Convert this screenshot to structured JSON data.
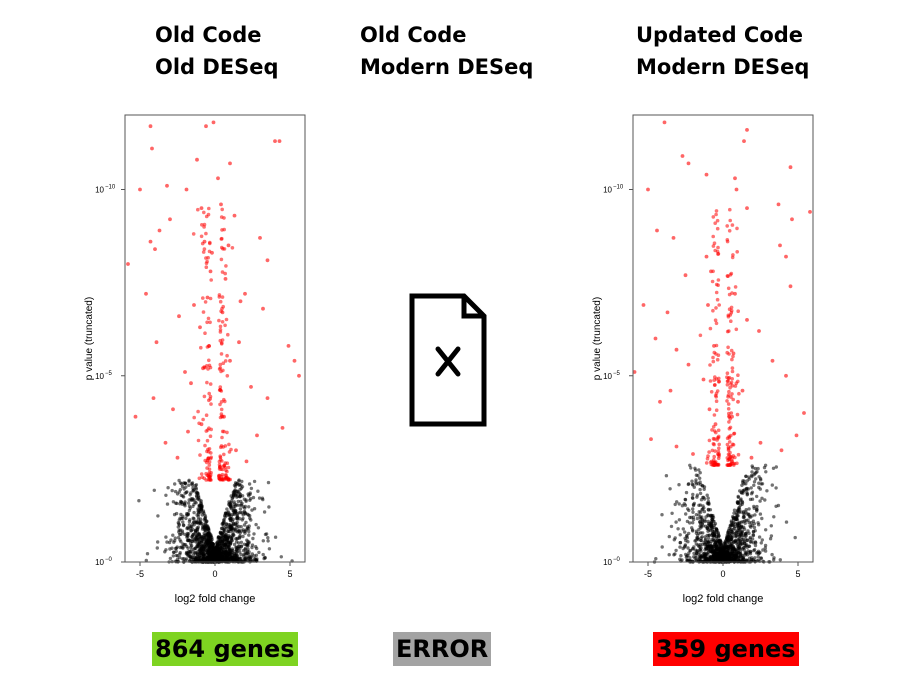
{
  "columns": [
    {
      "title_line1": "Old Code",
      "title_line2": "Old DESeq",
      "result_label": "864 genes",
      "result_color": "#7ed321"
    },
    {
      "title_line1": "Old Code",
      "title_line2": "Modern DESeq",
      "result_label": "ERROR",
      "result_color": "#a3a3a3"
    },
    {
      "title_line1": "Updated Code",
      "title_line2": "Modern DESeq",
      "result_label": "359 genes",
      "result_color": "#ff0000"
    }
  ],
  "error_icon": "file-error-icon",
  "colors": {
    "significant": "#ff0000",
    "not_significant": "#000000",
    "frame": "#555555"
  },
  "chart_data": [
    {
      "type": "scatter",
      "panel": "left",
      "xlabel": "log2 fold change",
      "ylabel": "p value (truncated)",
      "x_ticks": [
        -5,
        0,
        5
      ],
      "y_ticks": [
        {
          "exp": 0,
          "label": "10"
        },
        {
          "exp": -5,
          "label": "10"
        },
        {
          "exp": -10,
          "label": "10"
        }
      ],
      "y_tick_exponents": [
        "−0",
        "−5",
        "−10"
      ],
      "xlim": [
        -6,
        6
      ],
      "ylim_neg_log10": [
        0,
        12
      ],
      "significance_threshold_neg_log10": 2.2,
      "significant_genes": 864,
      "highlight_points": [
        [
          -4.3,
          11.7
        ],
        [
          -0.6,
          11.7
        ],
        [
          -0.1,
          11.8
        ],
        [
          4.0,
          11.3
        ],
        [
          4.3,
          11.3
        ],
        [
          -4.2,
          11.1
        ],
        [
          -1.2,
          10.8
        ],
        [
          1.0,
          10.7
        ],
        [
          -5.0,
          10.0
        ],
        [
          -3.2,
          10.1
        ],
        [
          -1.9,
          10.0
        ],
        [
          -0.9,
          9.5
        ],
        [
          -3.0,
          9.2
        ],
        [
          1.3,
          9.3
        ],
        [
          -3.7,
          8.9
        ],
        [
          -4.3,
          8.6
        ],
        [
          -4.0,
          8.4
        ],
        [
          -0.2,
          8.3
        ],
        [
          -0.7,
          8.6
        ],
        [
          0.9,
          8.5
        ],
        [
          0.4,
          9.6
        ],
        [
          3.0,
          8.7
        ],
        [
          -0.3,
          7.8
        ],
        [
          0.7,
          7.6
        ],
        [
          3.5,
          8.1
        ],
        [
          -5.8,
          8.0
        ],
        [
          2.0,
          7.2
        ],
        [
          -4.6,
          7.2
        ],
        [
          3.2,
          6.8
        ],
        [
          -2.4,
          6.6
        ],
        [
          -1.0,
          6.3
        ],
        [
          0.5,
          6.7
        ],
        [
          -3.9,
          5.9
        ],
        [
          1.6,
          5.9
        ],
        [
          4.9,
          5.8
        ],
        [
          5.3,
          5.4
        ],
        [
          -2.0,
          5.1
        ],
        [
          1.0,
          5.4
        ],
        [
          -0.4,
          5.8
        ],
        [
          -1.6,
          4.8
        ],
        [
          2.4,
          4.7
        ],
        [
          -4.1,
          4.4
        ],
        [
          3.5,
          4.4
        ],
        [
          -5.3,
          3.9
        ],
        [
          4.5,
          3.6
        ],
        [
          -1.8,
          3.5
        ],
        [
          2.8,
          3.4
        ],
        [
          -3.3,
          3.2
        ],
        [
          1.4,
          3.0
        ],
        [
          -0.9,
          3.7
        ],
        [
          0.6,
          3.9
        ],
        [
          -2.5,
          2.8
        ],
        [
          2.1,
          2.7
        ],
        [
          5.6,
          5.0
        ],
        [
          -2.8,
          4.1
        ],
        [
          -1.4,
          6.9
        ],
        [
          0.2,
          10.3
        ],
        [
          -0.5,
          7.1
        ],
        [
          1.7,
          7.0
        ],
        [
          -0.8,
          5.2
        ]
      ]
    },
    {
      "type": "scatter",
      "panel": "right",
      "xlabel": "log2 fold change",
      "ylabel": "p value (truncated)",
      "x_ticks": [
        -5,
        0,
        5
      ],
      "y_ticks": [
        {
          "exp": 0,
          "label": "10"
        },
        {
          "exp": -5,
          "label": "10"
        },
        {
          "exp": -10,
          "label": "10"
        }
      ],
      "y_tick_exponents": [
        "−0",
        "−5",
        "−10"
      ],
      "xlim": [
        -6,
        6
      ],
      "ylim_neg_log10": [
        0,
        12
      ],
      "significance_threshold_neg_log10": 2.6,
      "significant_genes": 359,
      "highlight_points": [
        [
          -3.9,
          11.8
        ],
        [
          1.6,
          11.6
        ],
        [
          1.4,
          11.3
        ],
        [
          -2.7,
          10.9
        ],
        [
          -2.3,
          10.7
        ],
        [
          4.5,
          10.6
        ],
        [
          -1.1,
          10.4
        ],
        [
          0.8,
          10.3
        ],
        [
          -5.0,
          10.0
        ],
        [
          0.9,
          10.0
        ],
        [
          3.7,
          9.6
        ],
        [
          5.8,
          9.4
        ],
        [
          4.6,
          9.2
        ],
        [
          -4.4,
          8.9
        ],
        [
          -3.3,
          8.7
        ],
        [
          1.6,
          9.5
        ],
        [
          3.8,
          8.5
        ],
        [
          4.2,
          8.2
        ],
        [
          -1.1,
          8.2
        ],
        [
          -0.8,
          7.8
        ],
        [
          -2.5,
          7.7
        ],
        [
          4.5,
          7.4
        ],
        [
          0.8,
          7.2
        ],
        [
          -1.0,
          6.9
        ],
        [
          -5.3,
          6.9
        ],
        [
          -3.7,
          6.7
        ],
        [
          1.6,
          6.5
        ],
        [
          2.4,
          6.2
        ],
        [
          -4.5,
          6.0
        ],
        [
          -3.1,
          5.7
        ],
        [
          -0.6,
          5.8
        ],
        [
          0.7,
          5.6
        ],
        [
          -2.3,
          5.3
        ],
        [
          4.2,
          5.0
        ],
        [
          3.3,
          5.4
        ],
        [
          -5.9,
          5.1
        ],
        [
          -1.3,
          4.9
        ],
        [
          1.3,
          4.6
        ],
        [
          -4.2,
          4.3
        ],
        [
          5.4,
          4.0
        ],
        [
          -0.5,
          3.7
        ],
        [
          0.6,
          3.9
        ],
        [
          -4.8,
          3.3
        ],
        [
          3.9,
          3.0
        ],
        [
          -3.1,
          3.1
        ],
        [
          2.5,
          3.2
        ],
        [
          -2.0,
          2.9
        ],
        [
          1.9,
          2.8
        ],
        [
          -0.9,
          4.1
        ],
        [
          1.0,
          4.3
        ],
        [
          4.9,
          3.4
        ],
        [
          -3.5,
          4.6
        ]
      ]
    }
  ]
}
